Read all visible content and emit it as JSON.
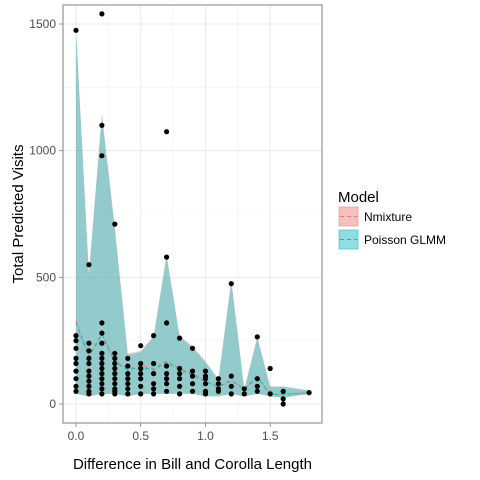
{
  "chart_data": {
    "type": "scatter",
    "title": "",
    "xlabel": "Difference in Bill and Corolla Length",
    "ylabel": "Total Predicted Visits",
    "xlim": [
      -0.1,
      1.9
    ],
    "ylim": [
      -75,
      1575
    ],
    "x_ticks": [
      0.0,
      0.5,
      1.0,
      1.5
    ],
    "x_tick_labels": [
      "0.0",
      "0.5",
      "1.0",
      "1.5"
    ],
    "y_ticks": [
      0,
      500,
      1000,
      1500
    ],
    "y_tick_labels": [
      "0",
      "500",
      "1000",
      "1500"
    ],
    "grid": true,
    "legend": {
      "title": "Model",
      "position": "right",
      "entries": [
        {
          "label": "Nmixture",
          "fill": "#F8766D",
          "line": "#F8766D"
        },
        {
          "label": "Poisson GLMM",
          "fill": "#00BFC4",
          "line": "#00BFC4"
        }
      ]
    },
    "series": [
      {
        "name": "Nmixture",
        "style": "dashed-line-with-ribbon",
        "color": "#F8766D",
        "x": [
          0.0,
          0.1,
          0.2,
          0.3,
          0.4,
          0.5,
          0.6,
          0.7,
          0.8,
          0.9,
          1.0,
          1.1,
          1.2,
          1.3,
          1.4,
          1.5,
          1.6,
          1.8
        ],
        "mean": [
          330,
          190,
          280,
          170,
          140,
          150,
          140,
          170,
          140,
          120,
          90,
          70,
          95,
          60,
          110,
          40,
          40,
          45
        ],
        "lower": [
          40,
          30,
          40,
          40,
          30,
          40,
          40,
          40,
          40,
          40,
          30,
          30,
          40,
          30,
          40,
          30,
          25,
          40
        ],
        "upper": [
          1480,
          520,
          1150,
          700,
          200,
          210,
          270,
          590,
          270,
          230,
          170,
          100,
          490,
          60,
          270,
          70,
          70,
          55
        ]
      },
      {
        "name": "Poisson GLMM",
        "style": "dashed-line-with-ribbon",
        "color": "#00BFC4",
        "x": [
          0.0,
          0.1,
          0.2,
          0.3,
          0.4,
          0.5,
          0.6,
          0.7,
          0.8,
          0.9,
          1.0,
          1.1,
          1.2,
          1.3,
          1.4,
          1.5,
          1.6,
          1.8
        ],
        "mean": [
          320,
          185,
          275,
          165,
          135,
          145,
          135,
          165,
          135,
          115,
          88,
          68,
          92,
          58,
          105,
          38,
          38,
          43
        ],
        "lower": [
          40,
          30,
          40,
          40,
          30,
          40,
          40,
          40,
          40,
          40,
          30,
          30,
          40,
          30,
          40,
          30,
          25,
          40
        ],
        "upper": [
          1475,
          510,
          1140,
          690,
          195,
          205,
          265,
          585,
          265,
          225,
          165,
          95,
          485,
          58,
          260,
          68,
          68,
          52
        ]
      },
      {
        "name": "",
        "style": "points",
        "color": "#000000",
        "x": [
          0.0,
          0.0,
          0.0,
          0.0,
          0.0,
          0.0,
          0.0,
          0.0,
          0.0,
          0.0,
          0.1,
          0.1,
          0.1,
          0.1,
          0.1,
          0.1,
          0.1,
          0.1,
          0.1,
          0.1,
          0.1,
          0.2,
          0.2,
          0.2,
          0.2,
          0.2,
          0.2,
          0.2,
          0.2,
          0.2,
          0.2,
          0.2,
          0.2,
          0.2,
          0.2,
          0.2,
          0.3,
          0.3,
          0.3,
          0.3,
          0.3,
          0.3,
          0.3,
          0.3,
          0.3,
          0.3,
          0.3,
          0.4,
          0.4,
          0.4,
          0.4,
          0.4,
          0.4,
          0.4,
          0.5,
          0.5,
          0.5,
          0.5,
          0.5,
          0.5,
          0.5,
          0.6,
          0.6,
          0.6,
          0.6,
          0.6,
          0.6,
          0.7,
          0.7,
          0.7,
          0.7,
          0.7,
          0.7,
          0.7,
          0.7,
          0.8,
          0.8,
          0.8,
          0.8,
          0.8,
          0.8,
          0.9,
          0.9,
          0.9,
          0.9,
          0.9,
          1.0,
          1.0,
          1.0,
          1.0,
          1.0,
          1.0,
          1.1,
          1.1,
          1.1,
          1.1,
          1.2,
          1.2,
          1.2,
          1.2,
          1.3,
          1.3,
          1.4,
          1.4,
          1.4,
          1.4,
          1.5,
          1.5,
          1.6,
          1.6,
          1.6,
          1.8
        ],
        "y": [
          1475,
          270,
          250,
          220,
          180,
          160,
          130,
          100,
          70,
          50,
          550,
          240,
          210,
          180,
          160,
          130,
          110,
          90,
          70,
          50,
          40,
          1540,
          1100,
          980,
          320,
          280,
          240,
          200,
          180,
          160,
          140,
          120,
          100,
          80,
          60,
          40,
          710,
          200,
          180,
          160,
          140,
          120,
          100,
          80,
          60,
          50,
          40,
          180,
          150,
          120,
          100,
          80,
          60,
          40,
          230,
          160,
          140,
          120,
          100,
          70,
          40,
          270,
          160,
          120,
          80,
          60,
          40,
          1075,
          580,
          320,
          150,
          120,
          100,
          80,
          50,
          260,
          140,
          120,
          100,
          70,
          40,
          220,
          130,
          110,
          80,
          50,
          130,
          110,
          100,
          80,
          50,
          40,
          100,
          80,
          60,
          50,
          475,
          110,
          70,
          40,
          60,
          40,
          265,
          100,
          70,
          50,
          140,
          40,
          50,
          20,
          0,
          45
        ]
      }
    ]
  }
}
